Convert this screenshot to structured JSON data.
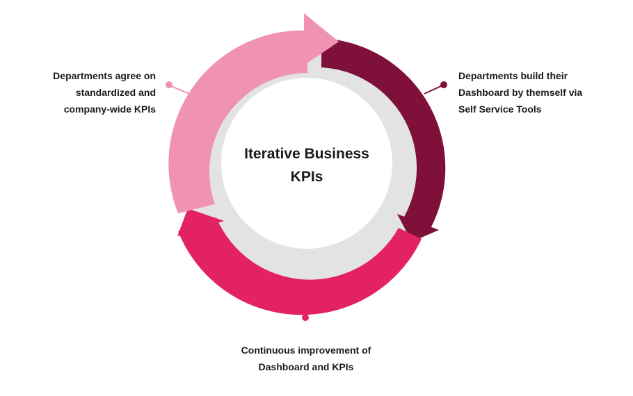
{
  "diagram": {
    "title_lines": [
      "Iterative Business",
      "KPIs"
    ],
    "steps": [
      {
        "lines": [
          "Departments agree on",
          "standardized and",
          "company-wide KPIs"
        ],
        "color": "#f093b3"
      },
      {
        "lines": [
          "Departments build their",
          "Dashboard by themself via",
          "Self Service Tools"
        ],
        "color": "#7e1039"
      },
      {
        "lines": [
          "Continuous improvement of",
          "Dashboard and KPIs"
        ],
        "color": "#e32261"
      }
    ],
    "inner_ring_color": "#e3e3e3"
  }
}
